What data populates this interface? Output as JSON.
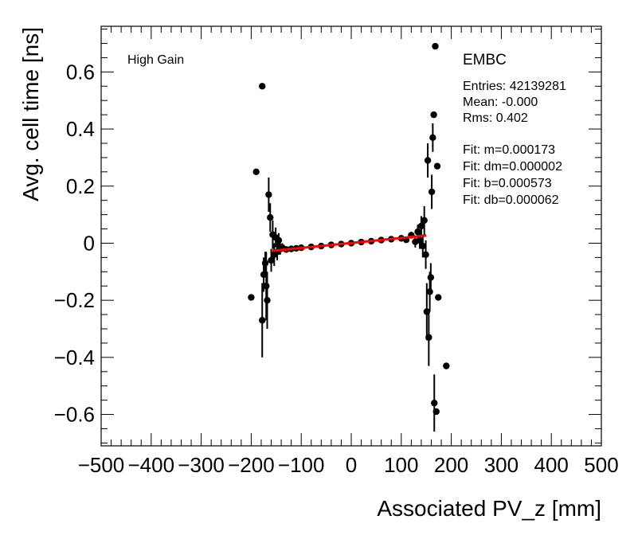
{
  "chart_data": {
    "type": "scatter",
    "title": "",
    "xlabel": "Associated PV_z [mm]",
    "ylabel": "Avg. cell time [ns]",
    "xlim": [
      -500,
      500
    ],
    "ylim": [
      -0.71,
      0.76
    ],
    "x_ticks": [
      "−500",
      "−400",
      "−300",
      "−200",
      "−100",
      "0",
      "100",
      "200",
      "300",
      "400",
      "500"
    ],
    "y_ticks": [
      "−0.6",
      "−0.4",
      "−0.2",
      "0",
      "0.2",
      "0.4",
      "0.6"
    ],
    "x_tick_values": [
      -500,
      -400,
      -300,
      -200,
      -100,
      0,
      100,
      200,
      300,
      400,
      500
    ],
    "y_tick_values": [
      -0.6,
      -0.4,
      -0.2,
      0,
      0.2,
      0.4,
      0.6
    ],
    "grid": false,
    "gain_label": "High Gain",
    "partition_label": "EMBC",
    "stats": [
      "Entries: 42139281",
      "Mean: -0.000",
      "Rms: 0.402"
    ],
    "fit_params": [
      "Fit: m=0.000173",
      "Fit: dm=0.000002",
      "Fit: b=0.000573",
      "Fit: db=0.000062"
    ],
    "marker_color": "#000000",
    "fit_color": "#ff0000",
    "fit_line": {
      "x": [
        -160,
        150
      ],
      "y": [
        -0.027,
        0.027
      ]
    },
    "points": [
      {
        "x": -200,
        "y": -0.19,
        "e": 0.0
      },
      {
        "x": -190,
        "y": 0.25,
        "e": 0.0
      },
      {
        "x": -178,
        "y": 0.55,
        "e": 0.0
      },
      {
        "x": -178,
        "y": -0.27,
        "e": 0.13
      },
      {
        "x": -175,
        "y": -0.11,
        "e": 0.06
      },
      {
        "x": -172,
        "y": -0.07,
        "e": 0.04
      },
      {
        "x": -170,
        "y": -0.15,
        "e": 0.12
      },
      {
        "x": -168,
        "y": -0.2,
        "e": 0.1
      },
      {
        "x": -165,
        "y": 0.17,
        "e": 0.06
      },
      {
        "x": -162,
        "y": 0.09,
        "e": 0.05
      },
      {
        "x": -160,
        "y": -0.06,
        "e": 0.04
      },
      {
        "x": -157,
        "y": 0.03,
        "e": 0.05
      },
      {
        "x": -154,
        "y": -0.04,
        "e": 0.04
      },
      {
        "x": -151,
        "y": 0.02,
        "e": 0.035
      },
      {
        "x": -148,
        "y": -0.03,
        "e": 0.03
      },
      {
        "x": -145,
        "y": 0.01,
        "e": 0.025
      },
      {
        "x": -142,
        "y": -0.02,
        "e": 0.02
      },
      {
        "x": -138,
        "y": -0.015,
        "e": 0.015
      },
      {
        "x": -130,
        "y": -0.022,
        "e": 0.01
      },
      {
        "x": -120,
        "y": -0.02,
        "e": 0.008
      },
      {
        "x": -110,
        "y": -0.018,
        "e": 0.005
      },
      {
        "x": -100,
        "y": -0.016,
        "e": 0.004
      },
      {
        "x": -80,
        "y": -0.013,
        "e": 0.003
      },
      {
        "x": -60,
        "y": -0.01,
        "e": 0.003
      },
      {
        "x": -40,
        "y": -0.006,
        "e": 0.003
      },
      {
        "x": -20,
        "y": -0.003,
        "e": 0.003
      },
      {
        "x": 0,
        "y": 0.0,
        "e": 0.003
      },
      {
        "x": 20,
        "y": 0.004,
        "e": 0.003
      },
      {
        "x": 40,
        "y": 0.007,
        "e": 0.003
      },
      {
        "x": 60,
        "y": 0.011,
        "e": 0.003
      },
      {
        "x": 80,
        "y": 0.014,
        "e": 0.004
      },
      {
        "x": 100,
        "y": 0.017,
        "e": 0.006
      },
      {
        "x": 110,
        "y": 0.012,
        "e": 0.01
      },
      {
        "x": 120,
        "y": 0.028,
        "e": 0.012
      },
      {
        "x": 128,
        "y": 0.005,
        "e": 0.02
      },
      {
        "x": 133,
        "y": 0.04,
        "e": 0.025
      },
      {
        "x": 137,
        "y": 0.01,
        "e": 0.03
      },
      {
        "x": 140,
        "y": 0.06,
        "e": 0.035
      },
      {
        "x": 143,
        "y": -0.01,
        "e": 0.04
      },
      {
        "x": 146,
        "y": 0.08,
        "e": 0.05
      },
      {
        "x": 149,
        "y": -0.04,
        "e": 0.05
      },
      {
        "x": 151,
        "y": -0.24,
        "e": 0.1
      },
      {
        "x": 153,
        "y": 0.29,
        "e": 0.06
      },
      {
        "x": 155,
        "y": -0.33,
        "e": 0.1
      },
      {
        "x": 157,
        "y": -0.17,
        "e": 0.07
      },
      {
        "x": 159,
        "y": -0.12,
        "e": 0.05
      },
      {
        "x": 161,
        "y": 0.18,
        "e": 0.06
      },
      {
        "x": 163,
        "y": 0.37,
        "e": 0.05
      },
      {
        "x": 165,
        "y": 0.45,
        "e": 0.0
      },
      {
        "x": 166,
        "y": -0.56,
        "e": 0.1
      },
      {
        "x": 168,
        "y": 0.69,
        "e": 0.0
      },
      {
        "x": 170,
        "y": -0.59,
        "e": 0.0
      },
      {
        "x": 172,
        "y": 0.27,
        "e": 0.0
      },
      {
        "x": 174,
        "y": -0.19,
        "e": 0.0
      },
      {
        "x": 190,
        "y": -0.43,
        "e": 0.0
      }
    ]
  }
}
